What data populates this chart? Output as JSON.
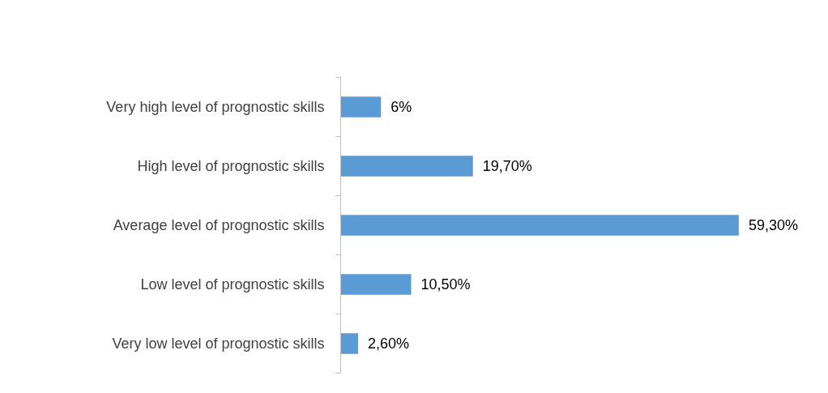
{
  "chart_data": {
    "type": "bar",
    "orientation": "horizontal",
    "categories": [
      "Very high level of prognostic skills",
      "High level of prognostic skills",
      "Average level of prognostic skills",
      "Low level of prognostic skills",
      "Very low level of prognostic skills"
    ],
    "values": [
      6,
      19.7,
      59.3,
      10.5,
      2.6
    ],
    "color": "#5b9bd5",
    "value_labels": [
      "6%",
      "19,70%",
      "59,30%",
      "10,50%",
      "2,60%"
    ]
  }
}
